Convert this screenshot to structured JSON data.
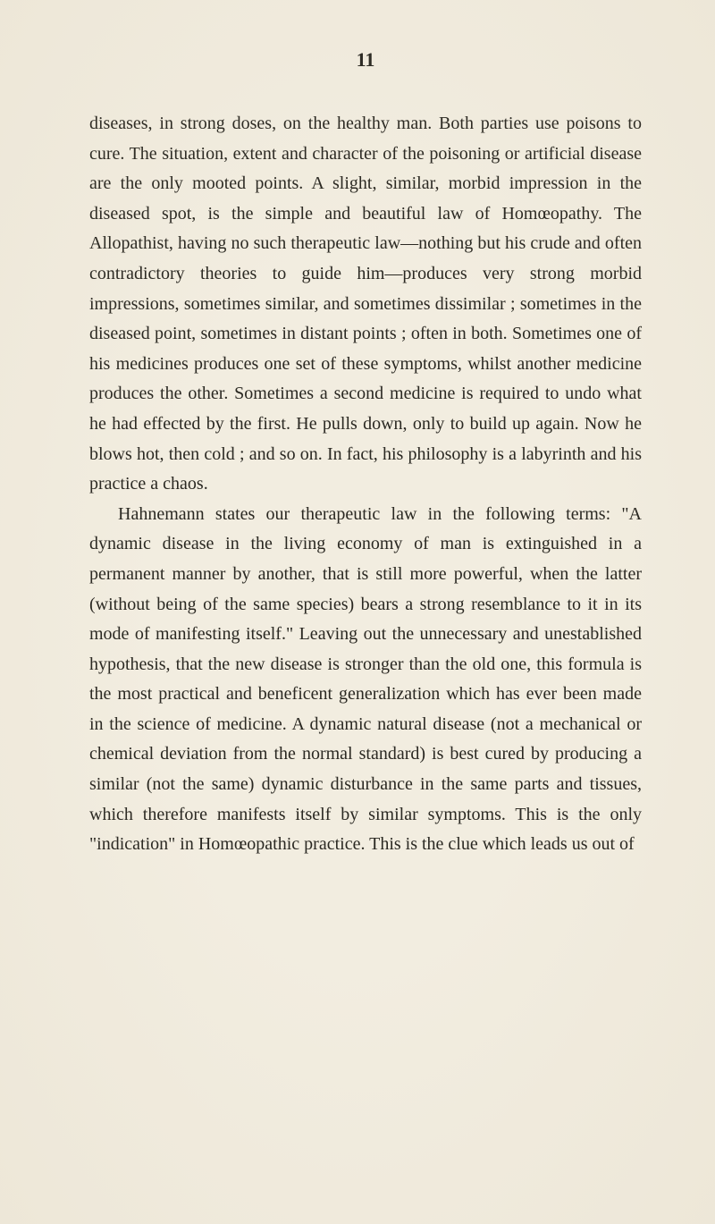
{
  "page": {
    "number": "11",
    "background_color": "#f2ede0",
    "text_color": "#2a2822",
    "font_family": "Georgia, Times New Roman, serif",
    "body_fontsize": 20,
    "line_height": 1.68,
    "page_number_fontsize": 22
  },
  "paragraphs": [
    "diseases, in strong doses, on the healthy man. Both parties use poisons to cure. The situation, extent and character of the poisoning or artificial disease are the only mooted points. A slight, similar, morbid impression in the diseased spot, is the simple and beautiful law of Homœopathy. The Allopathist, having no such therapeutic law—nothing but his crude and often contradictory theories to guide him—produces very strong morbid impressions, sometimes similar, and sometimes dissimilar ; sometimes in the diseased point, sometimes in distant points ; often in both. Sometimes one of his medicines produces one set of these symptoms, whilst another medicine produces the other. Sometimes a second medicine is required to undo what he had effected by the first. He pulls down, only to build up again. Now he blows hot, then cold ; and so on. In fact, his philosophy is a labyrinth and his practice a chaos.",
    "Hahnemann states our therapeutic law in the following terms: \"A dynamic disease in the living economy of man is extinguished in a permanent manner by another, that is still more powerful, when the latter (without being of the same species) bears a strong resemblance to it in its mode of manifesting itself.\" Leaving out the unnecessary and unestablished hypothesis, that the new disease is stronger than the old one, this formula is the most practical and beneficent generalization which has ever been made in the science of medicine. A dynamic natural disease (not a mechanical or chemical deviation from the normal standard) is best cured by producing a similar (not the same) dynamic disturbance in the same parts and tissues, which therefore manifests itself by similar symptoms. This is the only \"indication\" in Homœopathic practice. This is the clue which leads us out of"
  ]
}
